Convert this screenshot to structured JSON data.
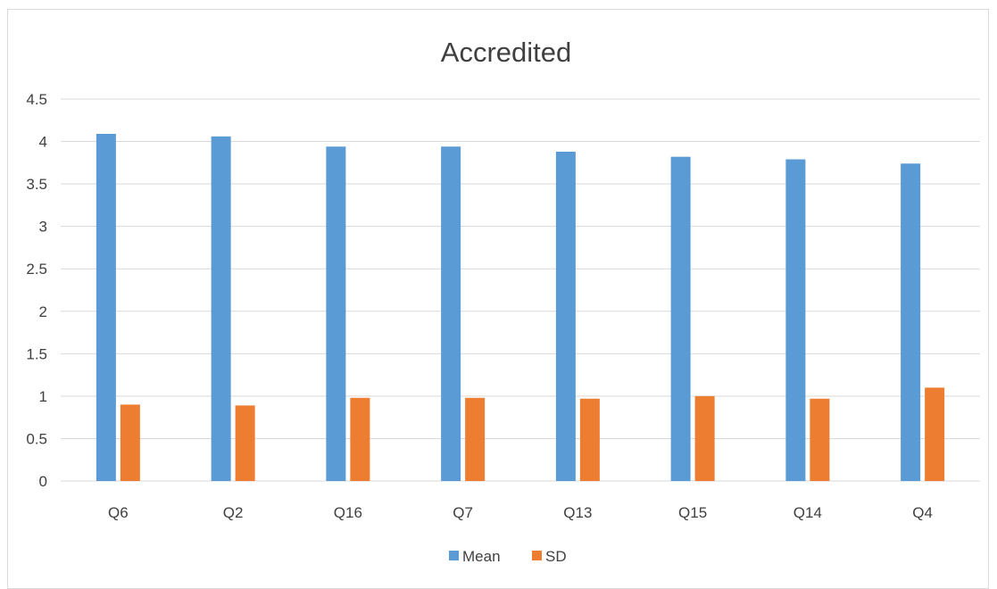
{
  "chart_data": {
    "type": "bar",
    "title": "Accredited",
    "xlabel": "",
    "ylabel": "",
    "categories": [
      "Q6",
      "Q2",
      "Q16",
      "Q7",
      "Q13",
      "Q15",
      "Q14",
      "Q4"
    ],
    "series": [
      {
        "name": "Mean",
        "color": "#5b9bd5",
        "values": [
          4.09,
          4.06,
          3.94,
          3.94,
          3.88,
          3.82,
          3.79,
          3.74
        ]
      },
      {
        "name": "SD",
        "color": "#ed7d31",
        "values": [
          0.9,
          0.89,
          0.98,
          0.98,
          0.97,
          1.0,
          0.97,
          1.1
        ]
      }
    ],
    "ylim": [
      0,
      4.5
    ],
    "yticks": [
      "0",
      "0.5",
      "1",
      "1.5",
      "2",
      "2.5",
      "3",
      "3.5",
      "4",
      "4.5"
    ],
    "grid": true,
    "legend_position": "bottom"
  }
}
